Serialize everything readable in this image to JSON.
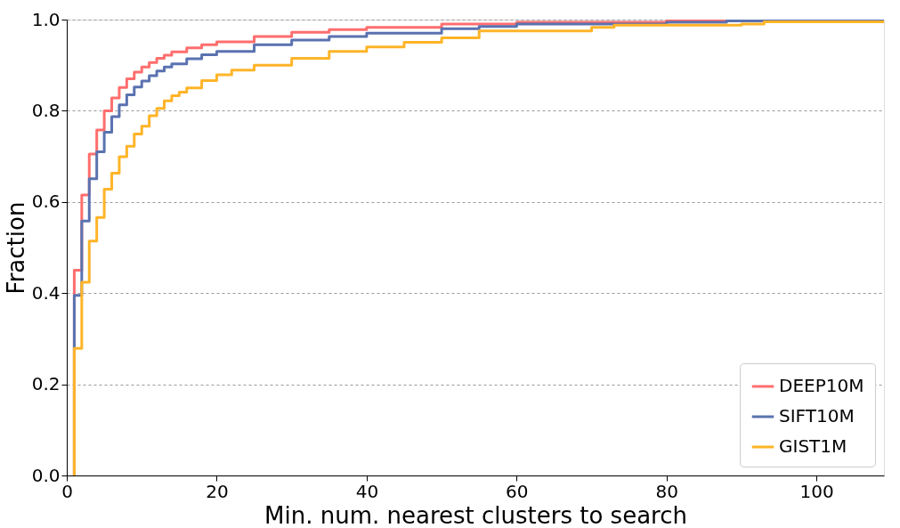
{
  "chart_data": {
    "type": "step",
    "xlabel": "Min. num. nearest clusters to search",
    "ylabel": "Fraction",
    "xlim": [
      0,
      109
    ],
    "xticks": [
      0,
      20,
      40,
      60,
      80,
      100
    ],
    "ylim": [
      0,
      1
    ],
    "yticks": [
      {
        "value": 0,
        "label": "0.0"
      },
      0.2,
      0.4,
      0.6,
      0.8,
      {
        "value": 1,
        "label": "1.0"
      }
    ],
    "grid": "y",
    "legend": "bottom right",
    "line_style": "solid",
    "marker": "none",
    "series": [
      {
        "name": "DEEP10M",
        "color": "#ff6e6e",
        "x": [
          1,
          1,
          2,
          3,
          4,
          5,
          6,
          7,
          8,
          9,
          10,
          11,
          12,
          13,
          14,
          16,
          18,
          20,
          25,
          30,
          35,
          40,
          50,
          60,
          80,
          100,
          109
        ],
        "values": [
          0,
          0.45,
          0.615,
          0.705,
          0.758,
          0.8,
          0.828,
          0.851,
          0.87,
          0.885,
          0.896,
          0.906,
          0.915,
          0.922,
          0.929,
          0.938,
          0.945,
          0.951,
          0.963,
          0.972,
          0.978,
          0.983,
          0.99,
          0.994,
          0.998,
          0.999,
          1.0
        ]
      },
      {
        "name": "SIFT10M",
        "color": "#5a72b0",
        "x": [
          1,
          1,
          2,
          3,
          4,
          5,
          6,
          7,
          8,
          9,
          10,
          11,
          12,
          13,
          14,
          16,
          18,
          20,
          25,
          30,
          35,
          40,
          50,
          55,
          60,
          80,
          88,
          100,
          109
        ],
        "values": [
          0,
          0.395,
          0.558,
          0.651,
          0.71,
          0.753,
          0.787,
          0.813,
          0.835,
          0.852,
          0.865,
          0.877,
          0.887,
          0.896,
          0.903,
          0.914,
          0.923,
          0.93,
          0.945,
          0.955,
          0.963,
          0.97,
          0.98,
          0.985,
          0.99,
          0.994,
          0.997,
          0.998,
          0.999
        ]
      },
      {
        "name": "GIST1M",
        "color": "#ffb428",
        "x": [
          1,
          1,
          2,
          3,
          4,
          5,
          6,
          7,
          8,
          9,
          10,
          11,
          12,
          13,
          14,
          15,
          16,
          18,
          20,
          22,
          25,
          30,
          35,
          40,
          45,
          50,
          55,
          70,
          73,
          90,
          93,
          109
        ],
        "values": [
          0,
          0.279,
          0.424,
          0.514,
          0.566,
          0.628,
          0.663,
          0.699,
          0.722,
          0.749,
          0.766,
          0.789,
          0.805,
          0.822,
          0.833,
          0.841,
          0.85,
          0.866,
          0.879,
          0.889,
          0.9,
          0.915,
          0.93,
          0.94,
          0.95,
          0.96,
          0.975,
          0.983,
          0.988,
          0.99,
          0.995,
          0.997
        ]
      }
    ]
  }
}
